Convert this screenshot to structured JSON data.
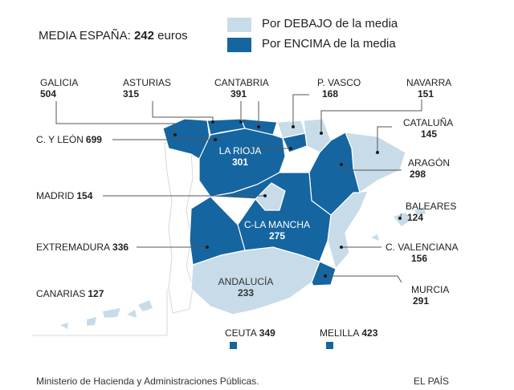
{
  "title": {
    "prefix": "MEDIA ESPAÑA:",
    "value": "242",
    "unit": "euros"
  },
  "legend": {
    "below": {
      "label": "Por DEBAJO de la media",
      "color": "#c7dce8"
    },
    "above": {
      "label": "Por ENCIMA de la media",
      "color": "#1565a0"
    }
  },
  "regions": {
    "galicia": {
      "name": "GALICIA",
      "value": "504"
    },
    "asturias": {
      "name": "ASTURIAS",
      "value": "315"
    },
    "cantabria": {
      "name": "CANTABRIA",
      "value": "391"
    },
    "pvasco": {
      "name": "P. VASCO",
      "value": "168"
    },
    "navarra": {
      "name": "NAVARRA",
      "value": "151"
    },
    "cataluna": {
      "name": "CATALUÑA",
      "value": "145"
    },
    "cyleon": {
      "name": "C. Y LEÓN",
      "value": "699"
    },
    "larioja": {
      "name": "LA RIOJA",
      "value": "301"
    },
    "aragon": {
      "name": "ARAGÓN",
      "value": "298"
    },
    "madrid": {
      "name": "MADRID",
      "value": "154"
    },
    "baleares": {
      "name": "BALEARES",
      "value": "124"
    },
    "cmancha": {
      "name": "C-LA MANCHA",
      "value": "275"
    },
    "extremadura": {
      "name": "EXTREMADURA",
      "value": "336"
    },
    "cvalenciana": {
      "name": "C. VALENCIANA",
      "value": "156"
    },
    "canarias": {
      "name": "CANARIAS",
      "value": "127"
    },
    "andalucia": {
      "name": "ANDALUCÍA",
      "value": "233"
    },
    "murcia": {
      "name": "MURCIA",
      "value": "291"
    },
    "ceuta": {
      "name": "CEUTA",
      "value": "349"
    },
    "melilla": {
      "name": "MELILLA",
      "value": "423"
    }
  },
  "footer": {
    "source": "Ministerio de Hacienda y Administraciones Públicas.",
    "brand": "EL PAÍS"
  }
}
